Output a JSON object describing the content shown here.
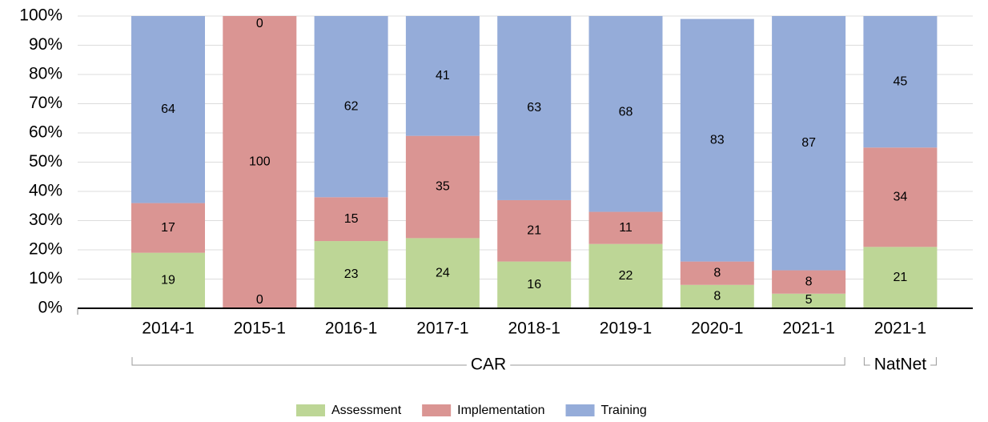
{
  "chart_data": {
    "type": "stacked_bar",
    "categories": [
      "2014-1",
      "2015-1",
      "2016-1",
      "2017-1",
      "2018-1",
      "2019-1",
      "2020-1",
      "2021-1",
      "2021-1"
    ],
    "groups": [
      {
        "name": "CAR",
        "size": 8
      },
      {
        "name": "NatNet",
        "size": 1
      }
    ],
    "series": [
      {
        "name": "Assessment",
        "color": "#bdd696",
        "values": [
          19,
          0,
          23,
          24,
          16,
          22,
          8,
          5,
          21
        ]
      },
      {
        "name": "Implementation",
        "color": "#da9593",
        "values": [
          17,
          100,
          15,
          35,
          21,
          11,
          8,
          8,
          34
        ]
      },
      {
        "name": "Training",
        "color": "#95acd9",
        "values": [
          64,
          0,
          62,
          41,
          63,
          68,
          83,
          87,
          45
        ]
      }
    ],
    "ylim": [
      0,
      100
    ],
    "yticks": [
      {
        "value": 0,
        "label": "0%"
      },
      {
        "value": 10,
        "label": "10%"
      },
      {
        "value": 20,
        "label": "20%"
      },
      {
        "value": 30,
        "label": "30%"
      },
      {
        "value": 40,
        "label": "40%"
      },
      {
        "value": 50,
        "label": "50%"
      },
      {
        "value": 60,
        "label": "60%"
      },
      {
        "value": 70,
        "label": "70%"
      },
      {
        "value": 80,
        "label": "80%"
      },
      {
        "value": 90,
        "label": "90%"
      },
      {
        "value": 100,
        "label": "100%"
      }
    ],
    "grid": true,
    "legend": "bottom"
  }
}
